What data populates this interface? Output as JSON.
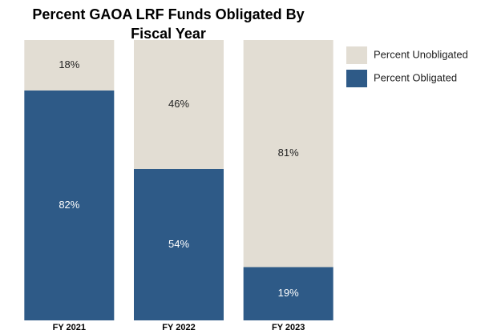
{
  "chart_data": {
    "type": "stacked-bar",
    "title": "Percent GAOA LRF Funds Obligated By Fiscal Year",
    "categories": [
      "FY 2021",
      "FY 2022",
      "FY 2023"
    ],
    "series": [
      {
        "name": "Percent Obligated",
        "color": "#2e5a87",
        "values": [
          82,
          54,
          19
        ],
        "value_labels": [
          "82%",
          "54%",
          "19%"
        ]
      },
      {
        "name": "Percent Unobligated",
        "color": "#e2ddd3",
        "values": [
          18,
          46,
          81
        ],
        "value_labels": [
          "18%",
          "46%",
          "81%"
        ]
      }
    ],
    "legend": "right"
  }
}
